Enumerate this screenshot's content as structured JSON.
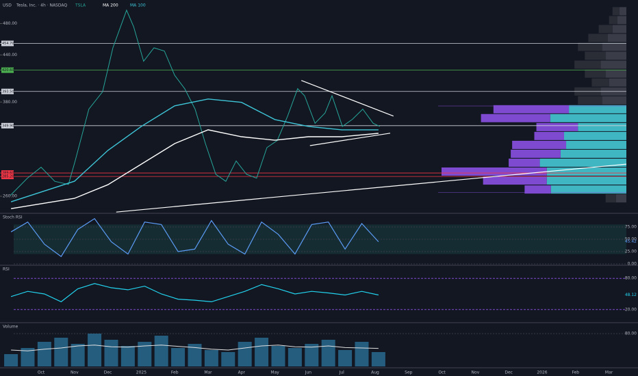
{
  "chart_data": {
    "type": "line",
    "currency": "USD",
    "title": "Tesla, Inc. · 4h · NASDAQ",
    "categories": [
      "Oct",
      "Nov",
      "Dec",
      "2025",
      "Feb",
      "Mar",
      "Apr",
      "May",
      "Jun",
      "Jul",
      "Aug",
      "Sep",
      "Oct",
      "Nov",
      "Dec",
      "2026",
      "Feb",
      "Mar"
    ],
    "ylim": [
      240,
      510
    ],
    "yticks": [
      {
        "value": 480,
        "label": "480.00"
      },
      {
        "value": 440,
        "label": "440.00"
      },
      {
        "value": 380,
        "label": "380.00"
      },
      {
        "value": 260,
        "label": "260.00"
      }
    ],
    "series": [
      {
        "name": "TSLA",
        "color": "#26a69a",
        "x": [
          -0.92,
          -0.41,
          0,
          0.41,
          0.82,
          1.02,
          1.43,
          1.84,
          2.15,
          2.56,
          2.77,
          3.07,
          3.38,
          3.69,
          4.0,
          4.3,
          4.61,
          4.92,
          5.23,
          5.53,
          5.84,
          6.15,
          6.45,
          6.76,
          7.07,
          7.38,
          7.68,
          7.89,
          8.2,
          8.5,
          8.71,
          9.02,
          9.32,
          9.63,
          9.94,
          10.14
        ],
        "values": [
          261,
          283,
          297,
          279,
          275,
          305,
          371,
          393,
          449,
          497,
          476,
          432,
          449,
          445,
          414,
          397,
          371,
          327,
          288,
          279,
          305,
          288,
          283,
          322,
          331,
          362,
          397,
          388,
          353,
          366,
          388,
          349,
          358,
          371,
          353,
          349
        ]
      },
      {
        "name": "MA 200",
        "color": "#ffffff",
        "x": [
          -0.9,
          1,
          2,
          3,
          4,
          5,
          6,
          7,
          8,
          9,
          10.1
        ],
        "values": [
          244.2,
          257.3,
          274.7,
          300.9,
          327.1,
          344.6,
          335.8,
          331.4,
          335.8,
          335.8,
          340.2
        ]
      },
      {
        "name": "MA 100",
        "color": "#3ec6d8",
        "x": [
          -0.9,
          1,
          2,
          3,
          4,
          5,
          6,
          7,
          8,
          9,
          10.1
        ],
        "values": [
          252.9,
          279.1,
          318.4,
          349.0,
          375.2,
          383.9,
          379.6,
          357.7,
          349.0,
          344.6,
          344.6
        ]
      }
    ],
    "levels": [
      {
        "value": 454.7,
        "label": "454.70",
        "color": "#d1d4dc"
      },
      {
        "value": 420.6,
        "label": "420.60",
        "color": "#4caf50"
      },
      {
        "value": 393.5,
        "label": "393.50",
        "color": "#d1d4dc"
      },
      {
        "value": 349.9,
        "label": "349.90",
        "color": "#d1d4dc"
      },
      {
        "value": 289.6,
        "label": "289.60",
        "color": "#f23645"
      },
      {
        "value": 285.2,
        "label": "285.20",
        "color": "#f23645"
      }
    ],
    "trendlines": [
      {
        "x": [
          7.79,
          10.55
        ],
        "values": [
          407.5,
          362.1
        ]
      },
      {
        "x": [
          8.05,
          10.45
        ],
        "values": [
          324.5,
          340.3
        ]
      },
      {
        "x": [
          2.25,
          17.52
        ],
        "values": [
          239.8,
          300.9
        ]
      }
    ],
    "volume_profile": {
      "value_area": [
        265,
        375
      ],
      "prices": [
        495.7,
        484.4,
        473.0,
        461.7,
        450.3,
        439.0,
        427.6,
        416.2,
        404.9,
        393.5,
        382.2,
        370.8,
        359.5,
        348.1,
        336.8,
        325.4,
        314.1,
        302.7,
        291.4,
        280.0,
        268.6,
        257.3
      ],
      "buy": [
        10,
        12,
        20,
        28,
        35,
        30,
        38,
        30,
        25,
        38,
        35,
        109,
        100,
        60,
        43,
        78,
        72,
        45,
        152,
        92,
        38,
        15
      ],
      "sell": [
        10,
        13,
        20,
        27,
        35,
        30,
        37,
        30,
        25,
        37,
        35,
        83,
        110,
        70,
        90,
        87,
        95,
        125,
        115,
        115,
        109,
        15
      ]
    },
    "stoch": {
      "name": "Stoch RSI",
      "color": "#5b9cf6",
      "band_color": "#26a69a",
      "ylim": [
        0,
        100
      ],
      "yticks": [
        {
          "value": 75,
          "label": "75.00"
        },
        {
          "value": 50,
          "label": "50.00"
        },
        {
          "value": 25,
          "label": "25.00"
        },
        {
          "value": 0,
          "label": "0.00"
        }
      ],
      "x": [
        -0.9,
        -0.4,
        0.1,
        0.6,
        1.1,
        1.6,
        2.1,
        2.6,
        3.1,
        3.6,
        4.1,
        4.6,
        5.1,
        5.6,
        6.1,
        6.6,
        7.1,
        7.6,
        8.1,
        8.6,
        9.1,
        9.6,
        10.1
      ],
      "values": [
        65,
        85,
        40,
        15,
        70,
        92,
        45,
        20,
        85,
        80,
        25,
        30,
        88,
        40,
        20,
        85,
        60,
        20,
        80,
        85,
        30,
        82,
        45
      ],
      "last_label": "45.42"
    },
    "rsi": {
      "name": "RSI",
      "color": "#22d3ee",
      "ylim": [
        0,
        100
      ],
      "yticks": [
        {
          "value": 80,
          "label": "80.00"
        },
        {
          "value": 20,
          "label": "20.00"
        }
      ],
      "x": [
        -0.9,
        -0.4,
        0.1,
        0.6,
        1.1,
        1.6,
        2.1,
        2.6,
        3.1,
        3.6,
        4.1,
        4.6,
        5.1,
        5.6,
        6.1,
        6.6,
        7.1,
        7.6,
        8.1,
        8.6,
        9.1,
        9.6,
        10.1
      ],
      "values": [
        45,
        55,
        50,
        35,
        60,
        70,
        62,
        58,
        65,
        50,
        40,
        38,
        35,
        45,
        55,
        68,
        60,
        50,
        55,
        52,
        48,
        55,
        48
      ],
      "last_label": "48.12"
    },
    "histogram": {
      "name": "Volume",
      "color": "#2a6f97",
      "line_color": "#e0e0e0",
      "ylim": [
        0,
        100
      ],
      "yticks": [
        {
          "value": 80,
          "label": "80.00"
        }
      ],
      "x": [
        -0.9,
        -0.4,
        0.1,
        0.6,
        1.1,
        1.6,
        2.1,
        2.6,
        3.1,
        3.6,
        4.1,
        4.6,
        5.1,
        5.6,
        6.1,
        6.6,
        7.1,
        7.6,
        8.1,
        8.6,
        9.1,
        9.6,
        10.1
      ],
      "values": [
        30,
        45,
        60,
        70,
        55,
        80,
        65,
        50,
        60,
        75,
        45,
        55,
        40,
        35,
        60,
        70,
        50,
        45,
        55,
        65,
        40,
        60,
        35
      ],
      "line": [
        40,
        38,
        42,
        45,
        50,
        52,
        48,
        47,
        50,
        52,
        49,
        46,
        42,
        40,
        45,
        50,
        52,
        48,
        47,
        50,
        46,
        45,
        44
      ]
    }
  }
}
